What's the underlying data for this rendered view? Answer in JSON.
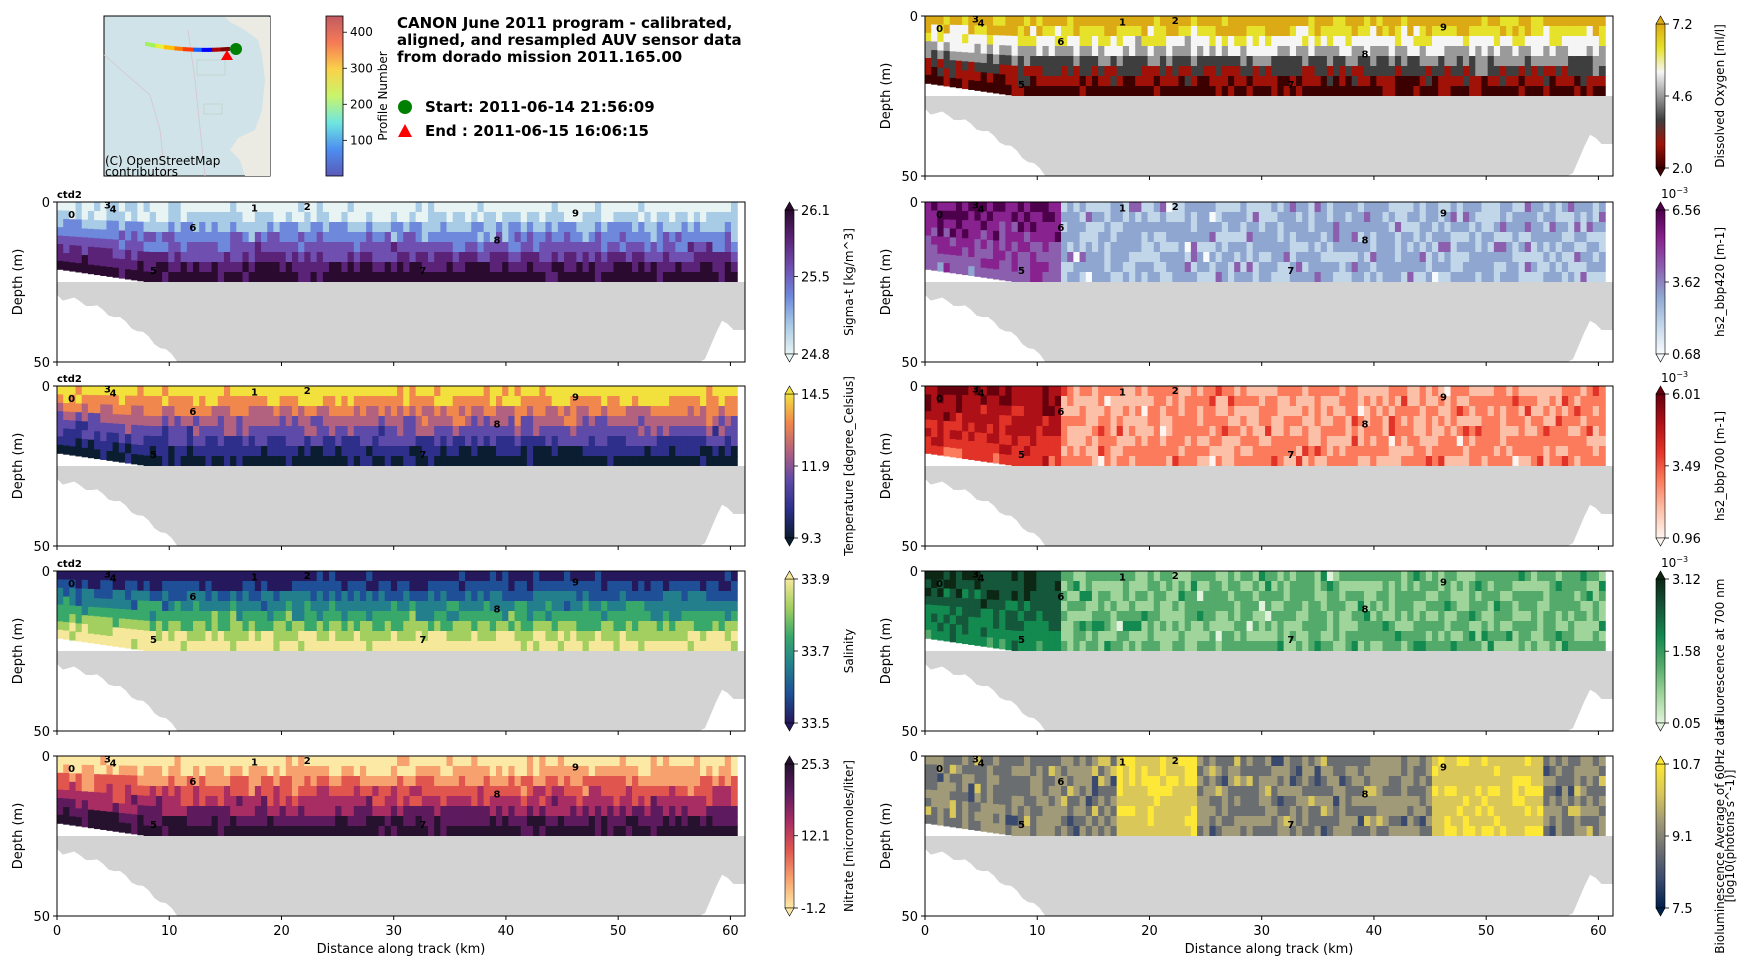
{
  "title_lines": [
    "CANON June 2011 program - calibrated,",
    "aligned, and resampled AUV sensor data",
    "from dorado mission 2011.165.00"
  ],
  "start_label": "Start: 2011-06-14 21:56:09",
  "end_label": "End  : 2011-06-15 16:06:15",
  "map": {
    "attribution_lines": [
      "(C) OpenStreetMap",
      "contributors"
    ],
    "colorbar_label": "Profile Number",
    "colorbar_ticks": [
      "100",
      "200",
      "300",
      "400"
    ],
    "colorbar_range": [
      1,
      445
    ],
    "start_marker_color": "#008000",
    "end_marker_color": "#ff0000"
  },
  "chart_data": {
    "type": "heatmap",
    "xlabel": "Distance along track (km)",
    "ylabel": "Depth (m)",
    "xlim": [
      0,
      61.3
    ],
    "ylim": [
      50,
      0
    ],
    "xticks": [
      "0",
      "10",
      "20",
      "30",
      "40",
      "50",
      "60"
    ],
    "yticks": [
      "0",
      "50"
    ],
    "profile_markers": [
      {
        "label": "0",
        "km": 1.3,
        "depth": 2.5
      },
      {
        "label": "3",
        "km": 4.5,
        "depth": -0.5
      },
      {
        "label": "4",
        "km": 5.0,
        "depth": 0.8
      },
      {
        "label": "1",
        "km": 17.6,
        "depth": 0.5
      },
      {
        "label": "2",
        "km": 22.3,
        "depth": 0
      },
      {
        "label": "6",
        "km": 12.1,
        "depth": 6.5
      },
      {
        "label": "5",
        "km": 8.6,
        "depth": 20
      },
      {
        "label": "7",
        "km": 32.6,
        "depth": 20
      },
      {
        "label": "8",
        "km": 39.2,
        "depth": 10.5
      },
      {
        "label": "9",
        "km": 46.2,
        "depth": 2
      }
    ],
    "panels": [
      {
        "id": "sigma-t",
        "column": "left",
        "row": 0,
        "tag": "ctd2",
        "colorbar_label": "Sigma-t [kg/m^3]",
        "ticks": [
          "24.8",
          "25.5",
          "26.1"
        ],
        "range": [
          24.8,
          26.1
        ],
        "scale_note": "",
        "colors": [
          "#e8f3f3",
          "#a8cbe6",
          "#6e88dc",
          "#6f4fb0",
          "#5b2378",
          "#2a0b2f"
        ]
      },
      {
        "id": "temperature",
        "column": "left",
        "row": 1,
        "tag": "ctd2",
        "colorbar_label": "Temperature [degree_Celsius]",
        "ticks": [
          "9.3",
          "11.9",
          "14.5"
        ],
        "range": [
          9.3,
          14.5
        ],
        "scale_note": "",
        "colors": [
          "#0a1d31",
          "#2d2f8a",
          "#5e4aa8",
          "#b2617f",
          "#f0874c",
          "#f2e13d"
        ]
      },
      {
        "id": "salinity",
        "column": "left",
        "row": 2,
        "tag": "ctd2",
        "colorbar_label": "Salinity",
        "ticks": [
          "33.5",
          "33.7",
          "33.9"
        ],
        "range": [
          33.5,
          33.9
        ],
        "scale_note": "",
        "colors": [
          "#26185c",
          "#1f4f96",
          "#237f8c",
          "#38a86b",
          "#a2cf5f",
          "#f6e89a"
        ]
      },
      {
        "id": "nitrate",
        "column": "left",
        "row": 3,
        "tag": "",
        "colorbar_label": "Nitrate [micromoles/liter]",
        "ticks": [
          "-1.2",
          "12.1",
          "25.3"
        ],
        "range": [
          -1.2,
          25.3
        ],
        "scale_note": "",
        "colors": [
          "#fde9a6",
          "#f7a26e",
          "#e0564f",
          "#a72d63",
          "#5d1b5e",
          "#26112f"
        ]
      },
      {
        "id": "dissolved-oxygen",
        "column": "right",
        "row": -1,
        "tag": "",
        "colorbar_label": "Dissolved Oxygen [ml/l]",
        "ticks": [
          "2.0",
          "4.6",
          "7.2"
        ],
        "range": [
          2.0,
          7.2
        ],
        "scale_note": "",
        "colors": [
          "#3c0000",
          "#a01208",
          "#3e3e3e",
          "#9a9a9a",
          "#f5f5f5",
          "#e6e12a",
          "#dcaa14"
        ]
      },
      {
        "id": "bbp420",
        "column": "right",
        "row": 0,
        "tag": "",
        "colorbar_label": "hs2_bbp420 [m-1]",
        "ticks": [
          "0.68",
          "3.62",
          "6.56"
        ],
        "range": [
          0.68,
          6.56
        ],
        "scale_note": "10^-3",
        "colors": [
          "#f7fbfd",
          "#c2d6ea",
          "#8fa6d0",
          "#8c5fae",
          "#88228e",
          "#4d004b"
        ]
      },
      {
        "id": "bbp700",
        "column": "right",
        "row": 1,
        "tag": "",
        "colorbar_label": "hs2_bbp700 [m-1]",
        "ticks": [
          "0.96",
          "3.49",
          "6.01"
        ],
        "range": [
          0.96,
          6.01
        ],
        "scale_note": "10^-3",
        "colors": [
          "#fff5f0",
          "#fcbfa7",
          "#fb7b5c",
          "#e23329",
          "#ad1117",
          "#67000d"
        ]
      },
      {
        "id": "fluorescence",
        "column": "right",
        "row": 2,
        "tag": "",
        "colorbar_label": "Fluorescence at 700 nm",
        "ticks": [
          "0.05",
          "1.58",
          "3.12"
        ],
        "range": [
          0.05,
          3.12
        ],
        "scale_note": "10^-3",
        "colors": [
          "#e1f3dc",
          "#9fd49a",
          "#53aa6a",
          "#138a4f",
          "#15573a",
          "#0c2814"
        ]
      },
      {
        "id": "bioluminescence",
        "column": "right",
        "row": 3,
        "tag": "",
        "colorbar_label": "Bioluminescence Average of 60Hz data",
        "colorbar_label2": "[log10(photons s^-1)]",
        "ticks": [
          "7.5",
          "9.1",
          "10.7"
        ],
        "range": [
          7.5,
          10.7
        ],
        "scale_note": "",
        "colors": [
          "#00204d",
          "#3a4a6e",
          "#6b6e71",
          "#a09a78",
          "#d9c859",
          "#fde737"
        ]
      }
    ]
  }
}
